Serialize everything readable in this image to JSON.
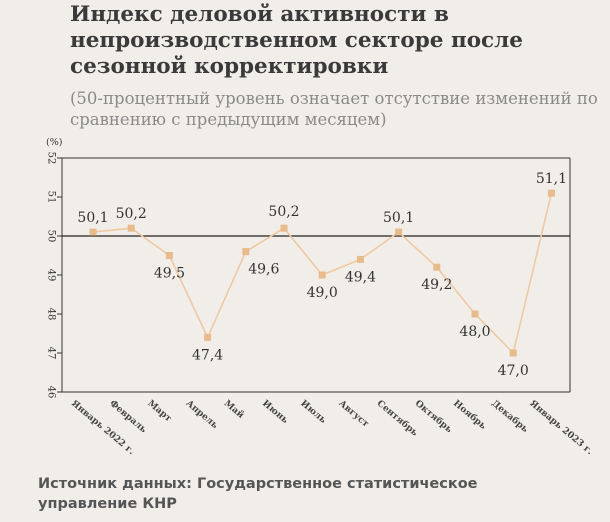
{
  "title": "Индекс деловой активности в непроизводственном секторе после сезонной корректировки",
  "subtitle": "(50-процентный уровень означает отсутствие изменений по сравнению с предыдущим месяцем)",
  "source": "Источник данных: Государственное статистическое управление КНР",
  "colors": {
    "line": "#efc9a3",
    "marker": "#e8bb8c",
    "axis": "#333333",
    "baseline": "#222222",
    "background": "#f1eee9"
  },
  "chart_data": {
    "type": "line",
    "title": "Индекс деловой активности в непроизводственном секторе после сезонной корректировки",
    "subtitle": "(50-процентный уровень означает отсутствие изменений по сравнению с предыдущим месяцем)",
    "ylabel": "(%)",
    "xlabel": "",
    "ylim": [
      46,
      52
    ],
    "yticks": [
      "46",
      "47",
      "48",
      "49",
      "50",
      "51",
      "52"
    ],
    "categories": [
      "Январь 2022 г.",
      "Февраль",
      "Март",
      "Апрель",
      "Май",
      "Июнь",
      "Июль",
      "Август",
      "Сентябрь",
      "Октябрь",
      "Ноябрь",
      "Декабрь",
      "Январь 2023 г."
    ],
    "series": [
      {
        "values": [
          50.1,
          50.2,
          49.5,
          47.4,
          49.6,
          50.2,
          49.0,
          49.4,
          50.1,
          49.2,
          48.0,
          47.0,
          51.1
        ],
        "labels": [
          "50,1",
          "50,2",
          "49,5",
          "47,4",
          "49,6",
          "50,2",
          "49,0",
          "49,4",
          "50,1",
          "49,2",
          "48,0",
          "47,0",
          "51,1"
        ]
      }
    ],
    "reference_line": 50,
    "grid": false
  }
}
